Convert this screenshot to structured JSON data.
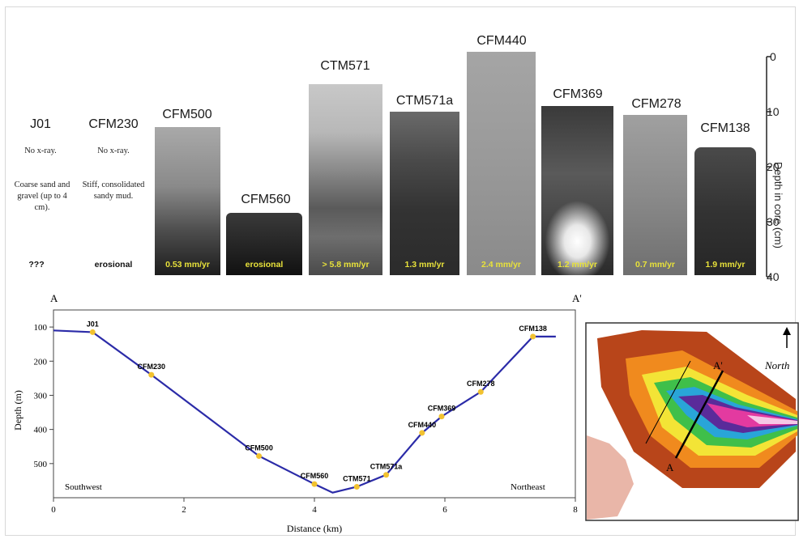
{
  "cores": [
    {
      "id": "j01",
      "name": "J01",
      "rate": "???",
      "note1": "No x-ray.",
      "note2": "Coarse sand and gravel (up to 4 cm)."
    },
    {
      "id": "cfm230",
      "name": "CFM230",
      "rate": "erosional",
      "note1": "No x-ray.",
      "note2": "Stiff, consolidated sandy mud."
    },
    {
      "id": "cfm500",
      "name": "CFM500",
      "rate": "0.53 mm/yr"
    },
    {
      "id": "cfm560",
      "name": "CFM560",
      "rate": "erosional"
    },
    {
      "id": "ctm571",
      "name": "CTM571",
      "rate": "> 5.8 mm/yr"
    },
    {
      "id": "ctm571a",
      "name": "CTM571a",
      "rate": "1.3 mm/yr"
    },
    {
      "id": "cfm440",
      "name": "CFM440",
      "rate": "2.4 mm/yr"
    },
    {
      "id": "cfm369",
      "name": "CFM369",
      "rate": "1.2 mm/yr"
    },
    {
      "id": "cfm278",
      "name": "CFM278",
      "rate": "0.7 mm/yr"
    },
    {
      "id": "cfm138",
      "name": "CFM138",
      "rate": "1.9 mm/yr"
    }
  ],
  "core_depth_axis": {
    "label": "Depth in core (cm)",
    "ticks": [
      "0",
      "10",
      "20",
      "30",
      "40"
    ]
  },
  "profile": {
    "start_label": "A",
    "end_label": "A'",
    "xlabel": "Distance (km)",
    "ylabel": "Depth (m)",
    "x_ticks": [
      "0",
      "2",
      "4",
      "6",
      "8"
    ],
    "y_ticks": [
      "100",
      "200",
      "300",
      "400",
      "500"
    ],
    "left_region": "Southwest",
    "right_region": "Northeast",
    "line_color": "#2b2ba8",
    "marker_color": "#f2c230",
    "stations": [
      {
        "name": "J01",
        "km": 0.6,
        "depth": 115
      },
      {
        "name": "CFM230",
        "km": 1.5,
        "depth": 240
      },
      {
        "name": "CFM500",
        "km": 3.15,
        "depth": 478
      },
      {
        "name": "CFM560",
        "km": 4.0,
        "depth": 560
      },
      {
        "name": "CTM571",
        "km": 4.65,
        "depth": 568
      },
      {
        "name": "CTM571a",
        "km": 5.1,
        "depth": 533
      },
      {
        "name": "CFM440",
        "km": 5.65,
        "depth": 410
      },
      {
        "name": "CFM369",
        "km": 5.95,
        "depth": 362
      },
      {
        "name": "CFM278",
        "km": 6.55,
        "depth": 290
      },
      {
        "name": "CFM138",
        "km": 7.35,
        "depth": 128
      }
    ]
  },
  "inset_map": {
    "north_label": "North",
    "section_start": "A",
    "section_end": "A'"
  }
}
